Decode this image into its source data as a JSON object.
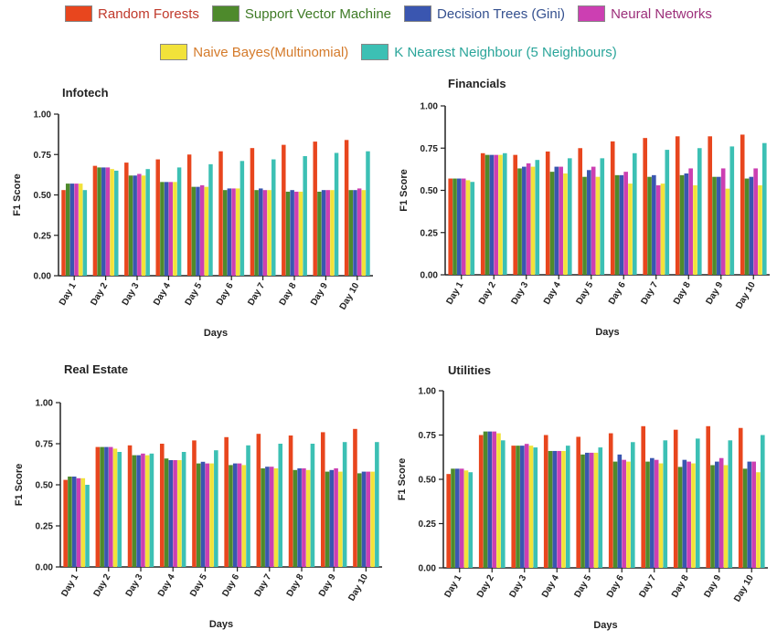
{
  "legend": [
    {
      "name": "Random Forests",
      "color": "#e8461e",
      "text_color": "#c0392b"
    },
    {
      "name": "Support Vector Machine",
      "color": "#4e8a2c",
      "text_color": "#3e7a25"
    },
    {
      "name": "Decision Trees (Gini)",
      "color": "#3a56b0",
      "text_color": "#34508f"
    },
    {
      "name": "Neural Networks",
      "color": "#cc3fb2",
      "text_color": "#9c2f7a"
    },
    {
      "name": "Naive Bayes(Multinomial)",
      "color": "#f2e23a",
      "text_color": "#d47a2a"
    },
    {
      "name": "K Nearest Neighbour (5 Neighbours)",
      "color": "#3cc0b4",
      "text_color": "#2aa59a"
    }
  ],
  "chart_data": [
    {
      "type": "bar",
      "title": "Infotech",
      "xlabel": "Days",
      "ylabel": "F1 Score",
      "ylim": [
        0,
        1
      ],
      "yticks": [
        "0.00",
        "0.25",
        "0.50",
        "0.75",
        "1.00"
      ],
      "categories": [
        "Day 1",
        "Day 2",
        "Day 3",
        "Day 4",
        "Day 5",
        "Day 6",
        "Day 7",
        "Day 8",
        "Day 9",
        "Day 10"
      ],
      "series": [
        {
          "name": "Random Forests",
          "values": [
            0.53,
            0.68,
            0.7,
            0.72,
            0.75,
            0.77,
            0.79,
            0.81,
            0.83,
            0.84
          ]
        },
        {
          "name": "Support Vector Machine",
          "values": [
            0.57,
            0.67,
            0.62,
            0.58,
            0.55,
            0.53,
            0.53,
            0.52,
            0.52,
            0.53
          ]
        },
        {
          "name": "Decision Trees (Gini)",
          "values": [
            0.57,
            0.67,
            0.62,
            0.58,
            0.55,
            0.54,
            0.54,
            0.53,
            0.53,
            0.53
          ]
        },
        {
          "name": "Neural Networks",
          "values": [
            0.57,
            0.67,
            0.63,
            0.58,
            0.56,
            0.54,
            0.53,
            0.52,
            0.53,
            0.54
          ]
        },
        {
          "name": "Naive Bayes(Multinomial)",
          "values": [
            0.57,
            0.66,
            0.62,
            0.58,
            0.55,
            0.54,
            0.53,
            0.52,
            0.53,
            0.53
          ]
        },
        {
          "name": "K Nearest Neighbour (5 Neighbours)",
          "values": [
            0.53,
            0.65,
            0.66,
            0.67,
            0.69,
            0.71,
            0.72,
            0.74,
            0.76,
            0.77
          ]
        }
      ]
    },
    {
      "type": "bar",
      "title": "Financials",
      "xlabel": "Days",
      "ylabel": "F1 Score",
      "ylim": [
        0,
        1
      ],
      "yticks": [
        "0.00",
        "0.25",
        "0.50",
        "0.75",
        "1.00"
      ],
      "categories": [
        "Day 1",
        "Day 2",
        "Day 3",
        "Day 4",
        "Day 5",
        "Day 6",
        "Day 7",
        "Day 8",
        "Day 9",
        "Day 10"
      ],
      "series": [
        {
          "name": "Random Forests",
          "values": [
            0.57,
            0.72,
            0.71,
            0.73,
            0.75,
            0.79,
            0.81,
            0.82,
            0.82,
            0.83
          ]
        },
        {
          "name": "Support Vector Machine",
          "values": [
            0.57,
            0.71,
            0.63,
            0.61,
            0.58,
            0.59,
            0.58,
            0.59,
            0.58,
            0.57
          ]
        },
        {
          "name": "Decision Trees (Gini)",
          "values": [
            0.57,
            0.71,
            0.64,
            0.64,
            0.62,
            0.59,
            0.59,
            0.6,
            0.58,
            0.58
          ]
        },
        {
          "name": "Neural Networks",
          "values": [
            0.57,
            0.71,
            0.66,
            0.64,
            0.64,
            0.61,
            0.53,
            0.63,
            0.63,
            0.63
          ]
        },
        {
          "name": "Naive Bayes(Multinomial)",
          "values": [
            0.56,
            0.71,
            0.64,
            0.6,
            0.58,
            0.54,
            0.54,
            0.53,
            0.51,
            0.53
          ]
        },
        {
          "name": "K Nearest Neighbour (5 Neighbours)",
          "values": [
            0.55,
            0.72,
            0.68,
            0.69,
            0.69,
            0.72,
            0.74,
            0.75,
            0.76,
            0.78
          ]
        }
      ]
    },
    {
      "type": "bar",
      "title": "Real Estate",
      "xlabel": "Days",
      "ylabel": "F1 Score",
      "ylim": [
        0,
        1
      ],
      "yticks": [
        "0.00",
        "0.25",
        "0.50",
        "0.75",
        "1.00"
      ],
      "categories": [
        "Day 1",
        "Day 2",
        "Day 3",
        "Day 4",
        "Day 5",
        "Day 6",
        "Day 7",
        "Day 8",
        "Day 9",
        "Day 10"
      ],
      "series": [
        {
          "name": "Random Forests",
          "values": [
            0.53,
            0.73,
            0.74,
            0.75,
            0.77,
            0.79,
            0.81,
            0.8,
            0.82,
            0.84
          ]
        },
        {
          "name": "Support Vector Machine",
          "values": [
            0.55,
            0.73,
            0.68,
            0.66,
            0.63,
            0.62,
            0.6,
            0.59,
            0.58,
            0.57
          ]
        },
        {
          "name": "Decision Trees (Gini)",
          "values": [
            0.55,
            0.73,
            0.68,
            0.65,
            0.64,
            0.63,
            0.61,
            0.6,
            0.59,
            0.58
          ]
        },
        {
          "name": "Neural Networks",
          "values": [
            0.54,
            0.73,
            0.69,
            0.65,
            0.63,
            0.63,
            0.61,
            0.6,
            0.6,
            0.58
          ]
        },
        {
          "name": "Naive Bayes(Multinomial)",
          "values": [
            0.54,
            0.72,
            0.68,
            0.65,
            0.63,
            0.62,
            0.6,
            0.59,
            0.58,
            0.58
          ]
        },
        {
          "name": "K Nearest Neighbour (5 Neighbours)",
          "values": [
            0.5,
            0.7,
            0.69,
            0.7,
            0.71,
            0.74,
            0.75,
            0.75,
            0.76,
            0.76
          ]
        }
      ]
    },
    {
      "type": "bar",
      "title": "Utilities",
      "xlabel": "Days",
      "ylabel": "F1 Score",
      "ylim": [
        0,
        1
      ],
      "yticks": [
        "0.00",
        "0.25",
        "0.50",
        "0.75",
        "1.00"
      ],
      "categories": [
        "Day 1",
        "Day 2",
        "Day 3",
        "Day 4",
        "Day 5",
        "Day 6",
        "Day 7",
        "Day 8",
        "Day 9",
        "Day 10"
      ],
      "series": [
        {
          "name": "Random Forests",
          "values": [
            0.53,
            0.75,
            0.69,
            0.75,
            0.74,
            0.76,
            0.8,
            0.78,
            0.8,
            0.79
          ]
        },
        {
          "name": "Support Vector Machine",
          "values": [
            0.56,
            0.77,
            0.69,
            0.66,
            0.64,
            0.6,
            0.6,
            0.57,
            0.58,
            0.56
          ]
        },
        {
          "name": "Decision Trees (Gini)",
          "values": [
            0.56,
            0.77,
            0.69,
            0.66,
            0.65,
            0.64,
            0.62,
            0.61,
            0.6,
            0.6
          ]
        },
        {
          "name": "Neural Networks",
          "values": [
            0.56,
            0.77,
            0.7,
            0.66,
            0.65,
            0.61,
            0.61,
            0.6,
            0.62,
            0.6
          ]
        },
        {
          "name": "Naive Bayes(Multinomial)",
          "values": [
            0.55,
            0.76,
            0.69,
            0.66,
            0.65,
            0.6,
            0.59,
            0.59,
            0.58,
            0.54
          ]
        },
        {
          "name": "K Nearest Neighbour (5 Neighbours)",
          "values": [
            0.54,
            0.72,
            0.68,
            0.69,
            0.68,
            0.71,
            0.72,
            0.73,
            0.72,
            0.75
          ]
        }
      ]
    }
  ]
}
